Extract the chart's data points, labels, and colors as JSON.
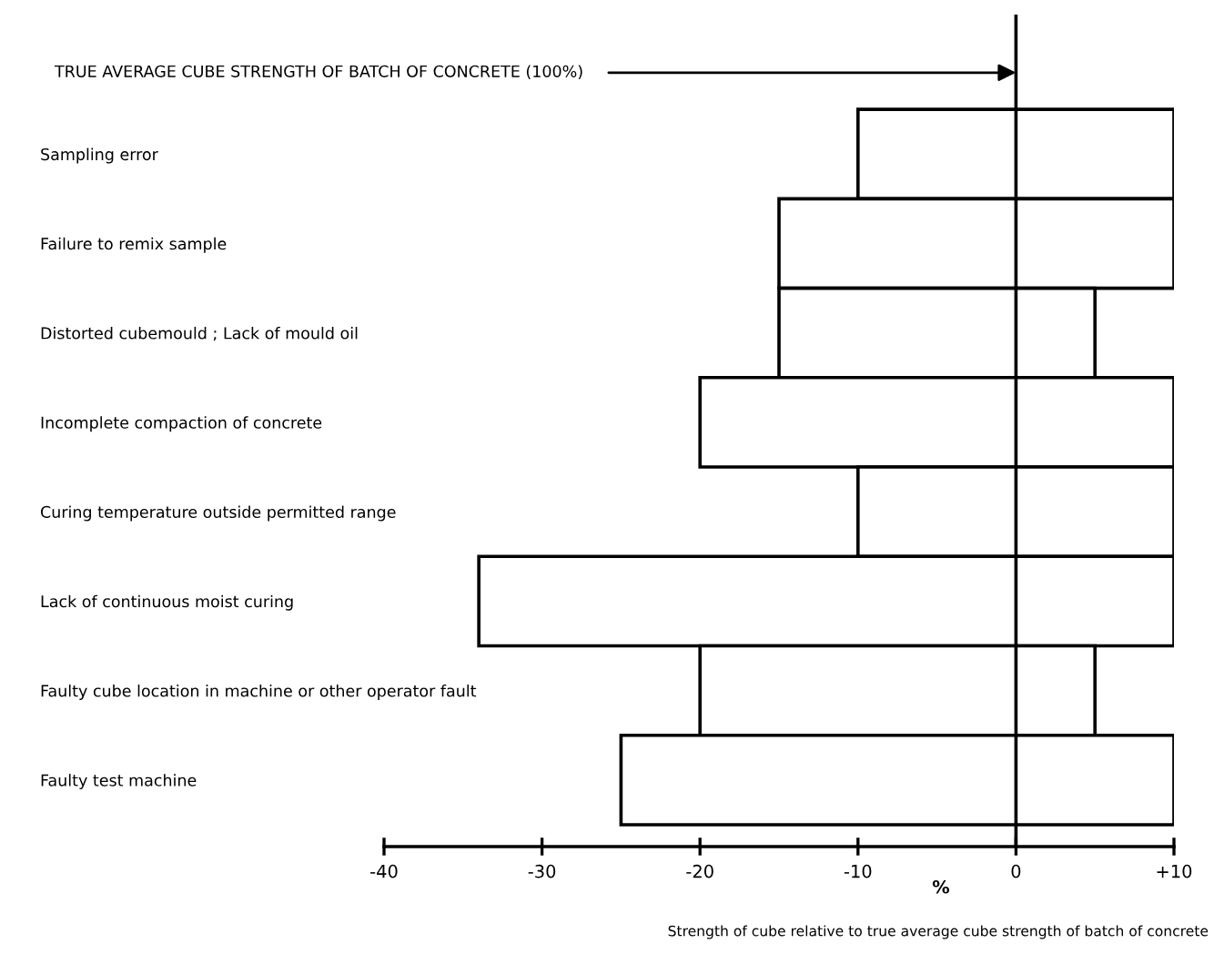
{
  "chart_data": {
    "type": "bar",
    "orientation": "horizontal",
    "categories": [
      "Sampling error",
      "Failure to remix sample",
      "Distorted cubemould ; Lack of mould oil",
      "Incomplete compaction of concrete",
      "Curing temperature outside permitted range",
      "Lack of continuous moist curing",
      "Faulty cube location in machine or other operator fault",
      "Faulty test machine"
    ],
    "base": [
      -10,
      -15,
      -15,
      -20,
      -10,
      -34,
      -20,
      -25
    ],
    "values": [
      20,
      25,
      20,
      30,
      20,
      44,
      25,
      35
    ],
    "color": "#ffffff",
    "xlim": [
      -40,
      10
    ],
    "xticks": [
      -40,
      -30,
      -20,
      -10,
      0,
      {
        "value": 10,
        "label": "+10"
      }
    ],
    "xlabel": "%",
    "ref_lines": [
      {
        "axis": "x",
        "value": 0,
        "label": "TRUE AVERAGE CUBE STRENGTH OF BATCH OF CONCRETE (100%)"
      }
    ],
    "annotations": [
      "Strength of cube relative to true average cube strength of batch of concrete"
    ],
    "grid": false
  }
}
